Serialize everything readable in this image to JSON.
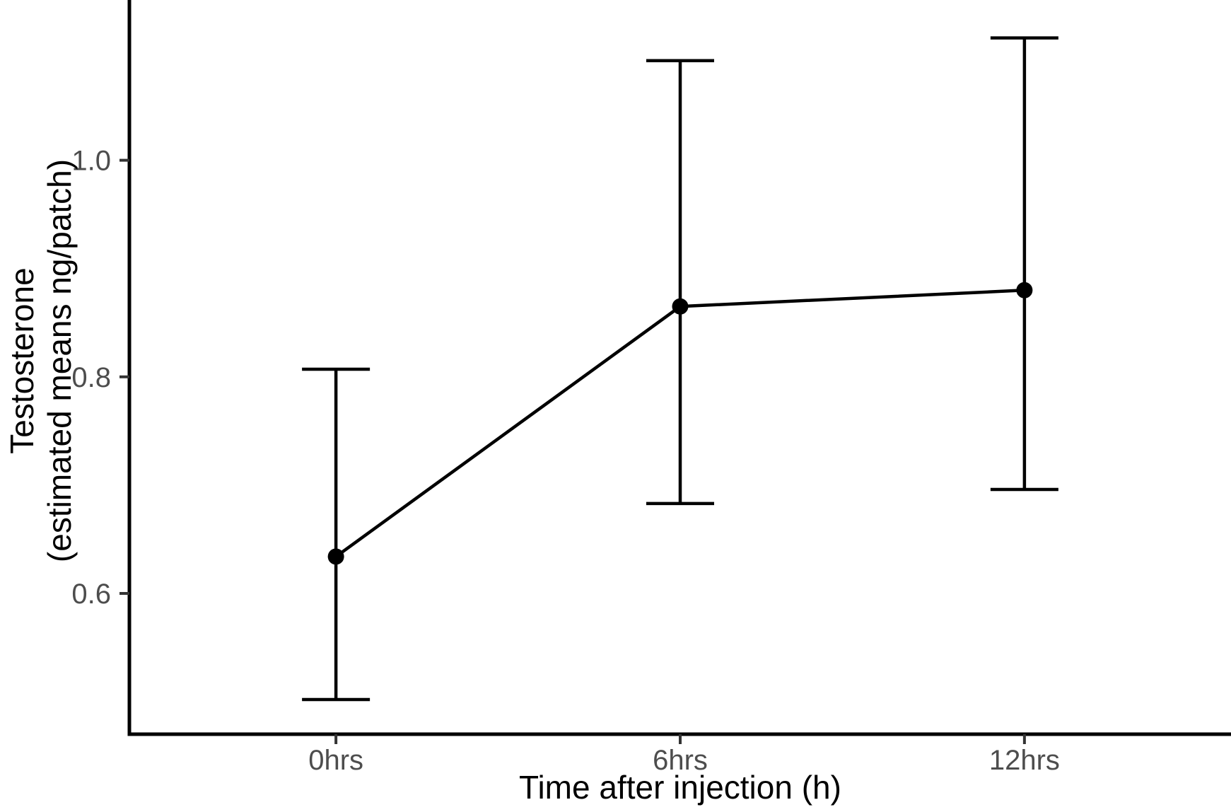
{
  "chart_data": {
    "type": "line",
    "title": "",
    "categories": [
      "0hrs",
      "6hrs",
      "12hrs"
    ],
    "series": [
      {
        "name": "Testosterone (estimated means ng/patch)",
        "values": [
          0.634,
          0.865,
          0.88
        ],
        "error_lower": [
          0.502,
          0.683,
          0.696
        ],
        "error_upper": [
          0.807,
          1.092,
          1.113
        ]
      }
    ],
    "xlabel": "Time after injection (h)",
    "ylabel": "Testosterone (estimated means ng/patch)",
    "ylabel_lines": [
      "Testosterone",
      "(estimated means ng/patch)"
    ],
    "yticks": [
      0.6,
      0.8,
      1.0
    ],
    "ytick_labels": [
      "0.6",
      "0.8",
      "1.0"
    ],
    "ylim": [
      0.47,
      1.148
    ],
    "grid": false,
    "legend": false,
    "style": "classic-no-gridlines",
    "colors": {
      "line": "#000000",
      "point": "#000000",
      "error_bar": "#000000",
      "axis_line": "#000000",
      "tick_mark": "#333333",
      "tick_label": "#4D4D4D",
      "axis_title": "#000000",
      "background": "#ffffff"
    }
  }
}
